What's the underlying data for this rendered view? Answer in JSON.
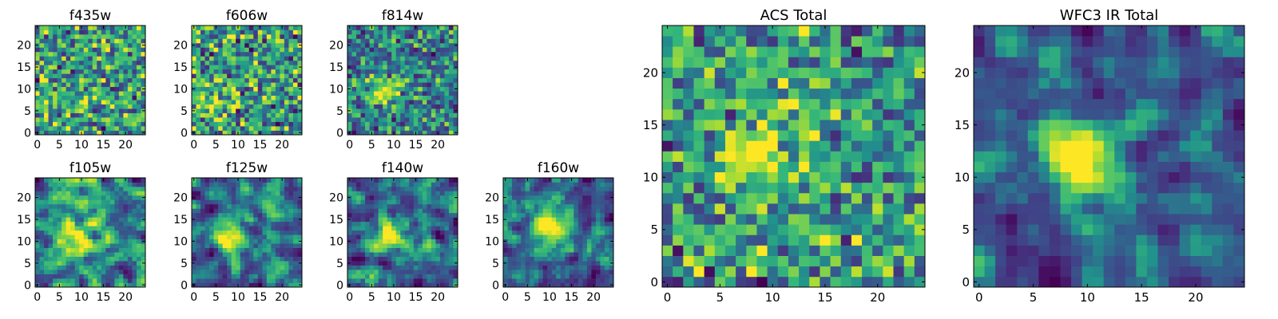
{
  "chart_data": [
    {
      "type": "heatmap",
      "title": "f435w",
      "grid_size": 25,
      "seed": 11,
      "smooth": 0,
      "blob": null,
      "xticks": [
        0,
        5,
        10,
        15,
        20
      ],
      "yticks": [
        0,
        5,
        10,
        15,
        20
      ],
      "colormap": "viridis"
    },
    {
      "type": "heatmap",
      "title": "f606w",
      "grid_size": 25,
      "seed": 23,
      "smooth": 0,
      "blob": [
        4,
        7,
        0.5
      ],
      "xticks": [
        0,
        5,
        10,
        15,
        20
      ],
      "yticks": [
        0,
        5,
        10,
        15,
        20
      ],
      "colormap": "viridis"
    },
    {
      "type": "heatmap",
      "title": "f814w",
      "grid_size": 25,
      "seed": 37,
      "smooth": 0,
      "blob": [
        8,
        10,
        1.0
      ],
      "xticks": [
        0,
        5,
        10,
        15,
        20
      ],
      "yticks": [
        0,
        5,
        10,
        15,
        20
      ],
      "colormap": "viridis"
    },
    {
      "type": "heatmap",
      "title": "f105w",
      "grid_size": 25,
      "seed": 41,
      "smooth": 1,
      "blob": [
        9,
        11,
        0.6
      ],
      "xticks": [
        0,
        5,
        10,
        15,
        20
      ],
      "yticks": [
        0,
        5,
        10,
        15,
        20
      ],
      "colormap": "viridis"
    },
    {
      "type": "heatmap",
      "title": "f125w",
      "grid_size": 25,
      "seed": 53,
      "smooth": 1,
      "blob": [
        8,
        11,
        0.8
      ],
      "xticks": [
        0,
        5,
        10,
        15,
        20
      ],
      "yticks": [
        0,
        5,
        10,
        15,
        20
      ],
      "colormap": "viridis"
    },
    {
      "type": "heatmap",
      "title": "f140w",
      "grid_size": 25,
      "seed": 67,
      "smooth": 1,
      "blob": [
        9,
        12,
        0.8
      ],
      "xticks": [
        0,
        5,
        10,
        15,
        20
      ],
      "yticks": [
        0,
        5,
        10,
        15,
        20
      ],
      "colormap": "viridis"
    },
    {
      "type": "heatmap",
      "title": "f160w",
      "grid_size": 25,
      "seed": 79,
      "smooth": 1,
      "blob": [
        10,
        13,
        0.9
      ],
      "xticks": [
        0,
        5,
        10,
        15,
        20
      ],
      "yticks": [
        0,
        5,
        10,
        15,
        20
      ],
      "colormap": "viridis"
    },
    {
      "type": "heatmap",
      "title": "ACS Total",
      "grid_size": 25,
      "seed": 97,
      "smooth": 0,
      "blob": [
        9,
        12,
        0.9
      ],
      "xticks": [
        0,
        5,
        10,
        15,
        20
      ],
      "yticks": [
        0,
        5,
        10,
        15,
        20
      ],
      "colormap": "viridis"
    },
    {
      "type": "heatmap",
      "title": "WFC3 IR Total",
      "grid_size": 25,
      "seed": 113,
      "smooth": 1,
      "blob": [
        10,
        12,
        1.0
      ],
      "xticks": [
        0,
        5,
        10,
        15,
        20
      ],
      "yticks": [
        0,
        5,
        10,
        15,
        20
      ],
      "colormap": "viridis"
    }
  ]
}
